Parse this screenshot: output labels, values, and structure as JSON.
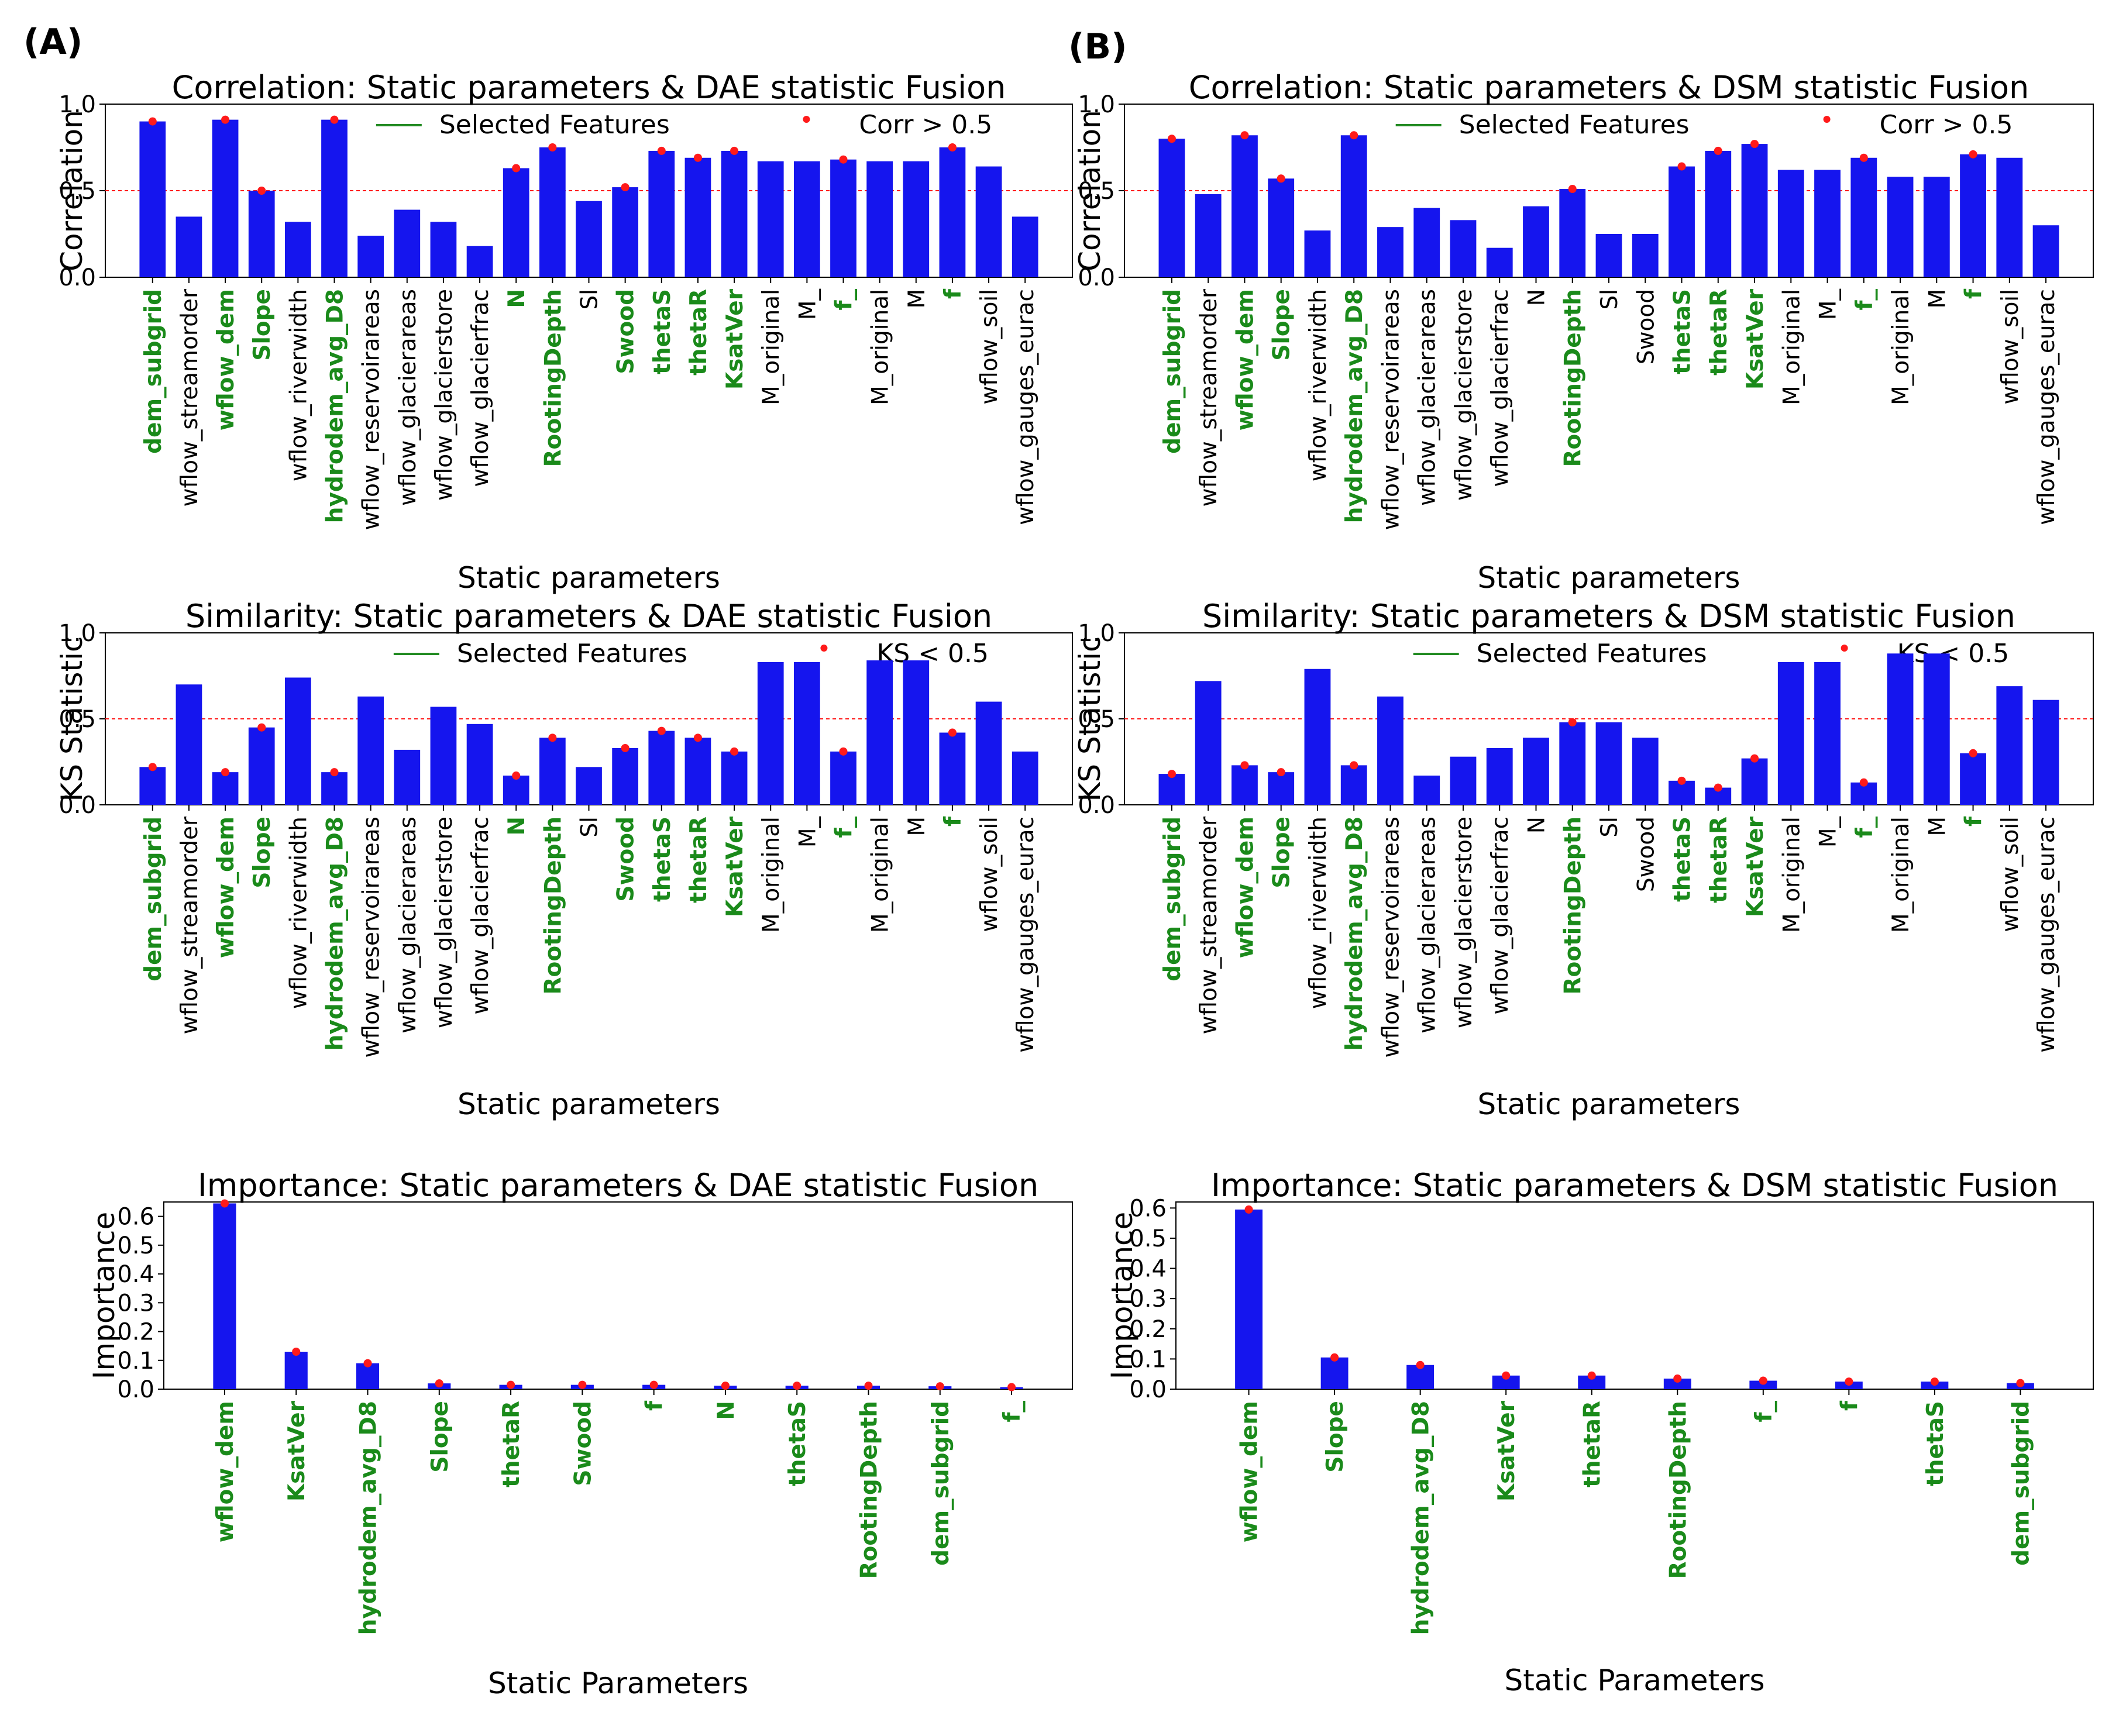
{
  "panel_labels": [
    "(A)",
    "(B)"
  ],
  "legend": {
    "selected": "Selected Features",
    "corr": "Corr > 0.5",
    "ks": "KS < 0.5"
  },
  "colors": {
    "bar": "#1515ee",
    "marker": "#ff1a1a",
    "selected_text": "#1a8a1a",
    "threshold": "#ff1a1a"
  },
  "chart_data": [
    {
      "id": "corr_dae",
      "type": "bar",
      "title": "Correlation: Static parameters & DAE statistic Fusion",
      "xlabel": "Static parameters",
      "ylabel": "Correlation",
      "ylim": [
        0,
        1.0
      ],
      "yticks": [
        "0.0",
        "0.5",
        "1.0"
      ],
      "threshold": 0.5,
      "legend": "corr",
      "categories": [
        "dem_subgrid",
        "wflow_streamorder",
        "wflow_dem",
        "Slope",
        "wflow_riverwidth",
        "hydrodem_avg_D8",
        "wflow_reservoirareas",
        "wflow_glacierareas",
        "wflow_glacierstore",
        "wflow_glacierfrac",
        "N",
        "RootingDepth",
        "Sl",
        "Swood",
        "thetaS",
        "thetaR",
        "KsatVer",
        "M_original",
        "M_",
        "f_",
        "M_original",
        "M",
        "f",
        "wflow_soil",
        "wflow_gauges_eurac"
      ],
      "values": [
        0.9,
        0.35,
        0.91,
        0.5,
        0.32,
        0.91,
        0.24,
        0.39,
        0.32,
        0.18,
        0.63,
        0.75,
        0.44,
        0.52,
        0.73,
        0.69,
        0.73,
        0.67,
        0.67,
        0.68,
        0.67,
        0.67,
        0.75,
        0.64,
        0.35
      ],
      "selected": [
        true,
        false,
        true,
        true,
        false,
        true,
        false,
        false,
        false,
        false,
        true,
        true,
        false,
        true,
        true,
        true,
        true,
        false,
        false,
        true,
        false,
        false,
        true,
        false,
        false
      ]
    },
    {
      "id": "corr_dsm",
      "type": "bar",
      "title": "Correlation: Static parameters & DSM statistic Fusion",
      "xlabel": "Static parameters",
      "ylabel": "Correlation",
      "ylim": [
        0,
        1.0
      ],
      "yticks": [
        "0.0",
        "0.5",
        "1.0"
      ],
      "threshold": 0.5,
      "legend": "corr",
      "categories": [
        "dem_subgrid",
        "wflow_streamorder",
        "wflow_dem",
        "Slope",
        "wflow_riverwidth",
        "hydrodem_avg_D8",
        "wflow_reservoirareas",
        "wflow_glacierareas",
        "wflow_glacierstore",
        "wflow_glacierfrac",
        "N",
        "RootingDepth",
        "Sl",
        "Swood",
        "thetaS",
        "thetaR",
        "KsatVer",
        "M_original",
        "M_",
        "f_",
        "M_original",
        "M",
        "f",
        "wflow_soil",
        "wflow_gauges_eurac"
      ],
      "values": [
        0.8,
        0.48,
        0.82,
        0.57,
        0.27,
        0.82,
        0.29,
        0.4,
        0.33,
        0.17,
        0.41,
        0.51,
        0.25,
        0.25,
        0.64,
        0.73,
        0.77,
        0.62,
        0.62,
        0.69,
        0.58,
        0.58,
        0.71,
        0.69,
        0.3
      ],
      "selected": [
        true,
        false,
        true,
        true,
        false,
        true,
        false,
        false,
        false,
        false,
        false,
        true,
        false,
        false,
        true,
        true,
        true,
        false,
        false,
        true,
        false,
        false,
        true,
        false,
        false
      ]
    },
    {
      "id": "ks_dae",
      "type": "bar",
      "title": "Similarity: Static parameters & DAE statistic Fusion",
      "xlabel": "Static parameters",
      "ylabel": "KS Statistic",
      "ylim": [
        0,
        1.0
      ],
      "yticks": [
        "0.0",
        "0.5",
        "1.0"
      ],
      "threshold": 0.5,
      "legend": "ks",
      "categories": [
        "dem_subgrid",
        "wflow_streamorder",
        "wflow_dem",
        "Slope",
        "wflow_riverwidth",
        "hydrodem_avg_D8",
        "wflow_reservoirareas",
        "wflow_glacierareas",
        "wflow_glacierstore",
        "wflow_glacierfrac",
        "N",
        "RootingDepth",
        "Sl",
        "Swood",
        "thetaS",
        "thetaR",
        "KsatVer",
        "M_original",
        "M_",
        "f_",
        "M_original",
        "M",
        "f",
        "wflow_soil",
        "wflow_gauges_eurac"
      ],
      "values": [
        0.22,
        0.7,
        0.19,
        0.45,
        0.74,
        0.19,
        0.63,
        0.32,
        0.57,
        0.47,
        0.17,
        0.39,
        0.22,
        0.33,
        0.43,
        0.39,
        0.31,
        0.83,
        0.83,
        0.31,
        0.84,
        0.84,
        0.42,
        0.6,
        0.31
      ],
      "selected": [
        true,
        false,
        true,
        true,
        false,
        true,
        false,
        false,
        false,
        false,
        true,
        true,
        false,
        true,
        true,
        true,
        true,
        false,
        false,
        true,
        false,
        false,
        true,
        false,
        false
      ]
    },
    {
      "id": "ks_dsm",
      "type": "bar",
      "title": "Similarity: Static parameters & DSM statistic Fusion",
      "xlabel": "Static parameters",
      "ylabel": "KS Statistic",
      "ylim": [
        0,
        1.0
      ],
      "yticks": [
        "0.0",
        "0.5",
        "1.0"
      ],
      "threshold": 0.5,
      "legend": "ks",
      "categories": [
        "dem_subgrid",
        "wflow_streamorder",
        "wflow_dem",
        "Slope",
        "wflow_riverwidth",
        "hydrodem_avg_D8",
        "wflow_reservoirareas",
        "wflow_glacierareas",
        "wflow_glacierstore",
        "wflow_glacierfrac",
        "N",
        "RootingDepth",
        "Sl",
        "Swood",
        "thetaS",
        "thetaR",
        "KsatVer",
        "M_original",
        "M_",
        "f_",
        "M_original",
        "M",
        "f",
        "wflow_soil",
        "wflow_gauges_eurac"
      ],
      "values": [
        0.18,
        0.72,
        0.23,
        0.19,
        0.79,
        0.23,
        0.63,
        0.17,
        0.28,
        0.33,
        0.39,
        0.48,
        0.48,
        0.39,
        0.14,
        0.1,
        0.27,
        0.83,
        0.83,
        0.13,
        0.88,
        0.88,
        0.3,
        0.69,
        0.61
      ],
      "selected": [
        true,
        false,
        true,
        true,
        false,
        true,
        false,
        false,
        false,
        false,
        false,
        true,
        false,
        false,
        true,
        true,
        true,
        false,
        false,
        true,
        false,
        false,
        true,
        false,
        false
      ]
    },
    {
      "id": "imp_dae",
      "type": "bar",
      "title": "Importance: Static parameters & DAE statistic Fusion",
      "xlabel": "Static Parameters",
      "ylabel": "Importance",
      "ylim": [
        0,
        0.65
      ],
      "yticks": [
        "0.0",
        "0.1",
        "0.2",
        "0.3",
        "0.4",
        "0.5",
        "0.6"
      ],
      "categories": [
        "wflow_dem",
        "KsatVer",
        "hydrodem_avg_D8",
        "Slope",
        "thetaR",
        "Swood",
        "f",
        "N",
        "thetaS",
        "RootingDepth",
        "dem_subgrid",
        "f_"
      ],
      "values": [
        0.645,
        0.13,
        0.09,
        0.02,
        0.015,
        0.015,
        0.015,
        0.012,
        0.012,
        0.012,
        0.01,
        0.007
      ],
      "selected": [
        true,
        true,
        true,
        true,
        true,
        true,
        true,
        true,
        true,
        true,
        true,
        true
      ]
    },
    {
      "id": "imp_dsm",
      "type": "bar",
      "title": "Importance: Static parameters & DSM statistic Fusion",
      "xlabel": "Static Parameters",
      "ylabel": "Importance",
      "ylim": [
        0,
        0.62
      ],
      "yticks": [
        "0.0",
        "0.1",
        "0.2",
        "0.3",
        "0.4",
        "0.5",
        "0.6"
      ],
      "categories": [
        "wflow_dem",
        "Slope",
        "hydrodem_avg_D8",
        "KsatVer",
        "thetaR",
        "RootingDepth",
        "f_",
        "f",
        "thetaS",
        "dem_subgrid"
      ],
      "values": [
        0.595,
        0.105,
        0.08,
        0.045,
        0.045,
        0.035,
        0.028,
        0.025,
        0.025,
        0.02
      ],
      "selected": [
        true,
        true,
        true,
        true,
        true,
        true,
        true,
        true,
        true,
        true
      ]
    }
  ]
}
